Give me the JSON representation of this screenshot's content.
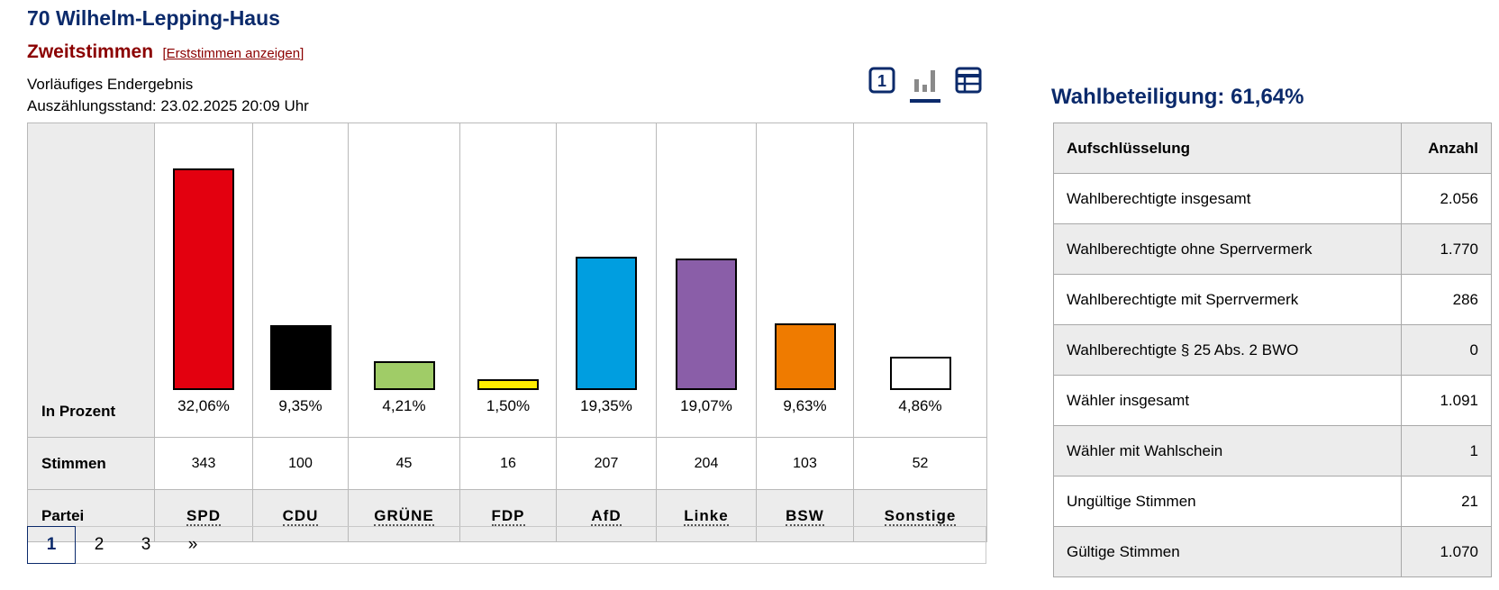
{
  "header": {
    "title": "70 Wilhelm-Lepping-Haus",
    "subtitle": "Zweitstimmen",
    "toggle_link": "Erststimmen anzeigen",
    "status_line": "Vorläufiges Endergebnis",
    "count_status": "Auszählungsstand: 23.02.2025 20:09 Uhr"
  },
  "view_icons": {
    "number_icon": "1",
    "chart_icon": "bar-chart-icon",
    "table_icon": "table-icon"
  },
  "results_table": {
    "percent_label": "In Prozent",
    "votes_label": "Stimmen",
    "party_label": "Partei"
  },
  "chart_data": {
    "type": "bar",
    "categories": [
      "SPD",
      "CDU",
      "GRÜNE",
      "FDP",
      "AfD",
      "Linke",
      "BSW",
      "Sonstige"
    ],
    "values": [
      32.06,
      9.35,
      4.21,
      1.5,
      19.35,
      19.07,
      9.63,
      4.86
    ],
    "value_labels": [
      "32,06%",
      "9,35%",
      "4,21%",
      "1,50%",
      "19,35%",
      "19,07%",
      "9,63%",
      "4,86%"
    ],
    "votes": [
      "343",
      "100",
      "45",
      "16",
      "207",
      "204",
      "103",
      "52"
    ],
    "colors": [
      "#e3000f",
      "#000000",
      "#a0cc67",
      "#ffed00",
      "#009ee0",
      "#8a5ea8",
      "#ef7b00",
      "#ffffff"
    ],
    "ylim": [
      0,
      32.06
    ],
    "legend": "none",
    "grid": false
  },
  "pagination": {
    "pages": [
      "1",
      "2",
      "3"
    ],
    "next": "»",
    "active": "1"
  },
  "turnout": {
    "title": "Wahlbeteiligung: 61,64%",
    "header_label": "Aufschlüsselung",
    "header_count": "Anzahl",
    "rows": [
      {
        "label": "Wahlberechtigte insgesamt",
        "value": "2.056"
      },
      {
        "label": "Wahlberechtigte ohne Sperrvermerk",
        "value": "1.770"
      },
      {
        "label": "Wahlberechtigte mit Sperrvermerk",
        "value": "286"
      },
      {
        "label": "Wahlberechtigte § 25 Abs. 2 BWO",
        "value": "0"
      },
      {
        "label": "Wähler insgesamt",
        "value": "1.091"
      },
      {
        "label": "Wähler mit Wahlschein",
        "value": "1"
      },
      {
        "label": "Ungültige Stimmen",
        "value": "21"
      },
      {
        "label": "Gültige Stimmen",
        "value": "1.070"
      }
    ]
  }
}
